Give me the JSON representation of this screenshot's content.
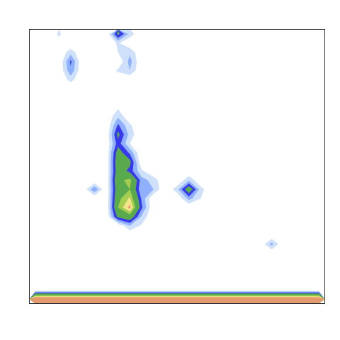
{
  "chart_data": {
    "type": "contour",
    "tick_labels": false,
    "xlim": [
      0,
      25
    ],
    "ylim": [
      0,
      30
    ],
    "levels": [
      0.5,
      1,
      1.5,
      2,
      3,
      3.5,
      4
    ],
    "colors": [
      "#cfe1fa",
      "#8fb0ff",
      "#3838ee",
      "#58aa4c",
      "#a6cc50",
      "#f2e48a",
      "#e49a6c"
    ],
    "cells": [
      [
        0,
        0,
        0.6,
        0,
        0,
        0,
        0,
        2.2,
        0.8,
        0,
        0,
        0,
        0,
        0,
        0,
        0,
        0,
        0,
        0,
        0,
        0,
        0,
        0,
        0,
        0
      ],
      [
        0,
        0,
        0.3,
        0,
        0,
        0,
        0,
        0.6,
        0,
        0,
        0,
        0,
        0,
        0,
        0,
        0,
        0,
        0,
        0,
        0,
        0,
        0,
        0,
        0,
        0
      ],
      [
        0,
        0,
        0,
        0.8,
        0,
        0,
        0,
        0.5,
        0.9,
        0,
        0,
        0,
        0,
        0,
        0,
        0,
        0,
        0,
        0,
        0,
        0,
        0,
        0,
        0,
        0
      ],
      [
        0,
        0,
        0,
        1.6,
        0,
        0,
        0,
        0,
        1.2,
        0,
        0,
        0,
        0,
        0,
        0,
        0,
        0,
        0,
        0,
        0,
        0,
        0,
        0,
        0,
        0
      ],
      [
        0,
        0,
        0,
        1.4,
        0,
        0,
        0,
        0.6,
        1.0,
        0,
        0,
        0,
        0,
        0,
        0,
        0,
        0,
        0,
        0,
        0,
        0,
        0,
        0,
        0,
        0
      ],
      [
        0,
        0,
        0,
        0.7,
        0,
        0,
        0,
        0,
        0,
        0,
        0,
        0,
        0,
        0,
        0,
        0,
        0,
        0,
        0,
        0,
        0,
        0,
        0,
        0,
        0
      ],
      [
        0,
        0,
        0,
        0,
        0,
        0,
        0,
        0,
        0.3,
        0,
        0,
        0,
        0,
        0,
        0,
        0,
        0,
        0,
        0,
        0,
        0,
        0,
        0,
        0,
        0
      ],
      [
        0,
        0,
        0,
        0,
        0,
        0,
        0,
        0,
        0,
        0,
        0,
        0,
        0,
        0,
        0,
        0,
        0,
        0,
        0,
        0,
        0,
        0,
        0,
        0,
        0
      ],
      [
        0,
        0,
        0,
        0,
        0,
        0,
        0,
        0.4,
        0,
        0,
        0,
        0,
        0,
        0,
        0,
        0,
        0,
        0,
        0,
        0,
        0,
        0,
        0,
        0,
        0
      ],
      [
        0,
        0,
        0,
        0,
        0,
        0,
        0,
        0.9,
        0,
        0,
        0,
        0,
        0,
        0,
        0,
        0,
        0,
        0,
        0,
        0,
        0,
        0,
        0,
        0,
        0
      ],
      [
        0,
        0,
        0,
        0,
        0,
        0,
        0,
        1.6,
        0.6,
        0,
        0,
        0,
        0,
        0,
        0,
        0,
        0,
        0,
        0,
        0,
        0,
        0,
        0,
        0,
        0
      ],
      [
        0,
        0,
        0,
        0,
        0,
        0,
        0,
        2.2,
        0.8,
        0,
        0,
        0,
        0,
        0,
        0,
        0,
        0,
        0,
        0,
        0,
        0,
        0,
        0,
        0,
        0
      ],
      [
        0,
        0,
        0,
        0,
        0,
        0,
        0,
        1.8,
        0.5,
        0,
        0,
        0,
        0,
        0,
        0,
        0,
        0,
        0,
        0,
        0,
        0,
        0,
        0,
        0,
        0
      ],
      [
        0,
        0,
        0,
        0,
        0,
        0,
        0,
        2.4,
        1.4,
        0,
        0,
        0,
        0,
        0,
        0,
        0,
        0,
        0,
        0,
        0,
        0,
        0,
        0,
        0,
        0
      ],
      [
        0,
        0,
        0,
        0,
        0,
        0,
        0,
        2.6,
        2.2,
        0,
        0,
        0,
        0,
        0,
        0,
        0,
        0,
        0,
        0,
        0,
        0,
        0,
        0,
        0,
        0
      ],
      [
        0,
        0,
        0,
        0,
        0,
        0,
        0,
        2.5,
        1.8,
        0.6,
        0,
        0,
        0,
        0,
        0,
        0,
        0,
        0,
        0,
        0,
        0,
        0,
        0,
        0,
        0
      ],
      [
        0,
        0,
        0,
        0,
        0,
        0,
        0,
        2.8,
        3.2,
        1.2,
        0.8,
        0,
        0,
        0.9,
        0,
        0,
        0,
        0,
        0,
        0,
        0,
        0,
        0,
        0,
        0
      ],
      [
        0,
        0,
        0,
        0,
        0,
        1.5,
        0,
        2.6,
        3.0,
        1.0,
        1.0,
        0,
        0.8,
        2.6,
        0.7,
        0,
        0,
        0,
        0,
        0,
        0,
        0,
        0,
        0,
        0
      ],
      [
        0,
        0,
        0,
        0,
        0,
        0,
        0,
        2.8,
        3.6,
        1.4,
        0,
        0,
        0,
        1.2,
        0.5,
        0,
        0,
        0,
        0,
        0,
        0,
        0,
        0,
        0,
        0
      ],
      [
        0,
        0,
        0,
        0,
        0,
        0,
        0,
        3.0,
        4.2,
        1.6,
        0,
        0,
        0,
        0,
        0,
        0,
        0,
        0,
        0,
        0,
        0,
        0,
        0,
        0,
        0
      ],
      [
        0,
        0,
        0,
        0,
        0,
        0,
        0,
        2.2,
        2.6,
        0.9,
        0,
        0,
        0.4,
        0,
        0,
        0,
        0,
        0,
        0,
        0,
        0,
        0,
        0,
        0,
        0
      ],
      [
        0,
        0,
        0,
        0,
        0,
        0,
        0,
        0,
        1.0,
        0.4,
        0,
        0,
        0,
        0,
        0,
        0,
        0,
        0,
        0,
        0,
        0,
        0,
        0,
        0,
        0
      ],
      [
        0,
        0,
        0,
        0,
        0,
        0,
        0,
        0,
        0,
        0,
        0,
        0,
        0,
        0,
        0,
        0,
        0,
        0,
        0,
        0,
        0,
        0,
        0,
        0,
        0
      ],
      [
        0,
        0,
        0,
        0,
        0,
        0,
        0,
        0,
        0,
        0,
        0,
        0,
        0,
        0,
        0,
        0,
        0,
        0,
        0,
        0,
        1.2,
        0,
        0,
        0,
        0
      ],
      [
        0,
        0,
        0,
        0,
        0,
        0,
        0,
        0,
        0,
        0,
        0,
        0,
        0,
        0,
        0,
        0,
        0,
        0,
        0,
        0,
        0,
        0,
        0,
        0,
        0
      ],
      [
        0,
        0,
        0,
        0,
        0,
        0,
        0,
        0,
        0,
        0,
        0,
        0,
        0,
        0,
        0,
        0,
        0,
        0,
        0,
        0,
        0,
        0,
        0,
        0,
        0
      ],
      [
        0,
        0,
        0,
        0,
        0,
        0,
        0,
        0,
        0,
        0,
        0,
        0,
        0,
        0,
        0,
        0,
        0,
        0,
        0,
        0,
        0,
        0,
        0,
        0,
        0
      ],
      [
        0,
        0,
        0,
        0,
        0,
        0,
        0,
        0,
        0,
        0,
        0,
        0,
        0,
        0,
        0,
        0,
        0,
        0,
        0,
        0,
        0,
        0,
        0,
        0,
        0
      ],
      [
        0,
        0,
        0,
        0,
        0,
        0,
        0,
        0,
        0,
        0,
        0,
        0,
        0,
        0,
        0,
        0,
        0,
        0,
        0,
        0,
        0,
        0,
        0,
        0,
        0
      ],
      [
        5,
        5,
        5,
        5,
        5,
        5,
        5,
        5,
        5,
        5,
        5,
        5,
        5,
        5,
        5,
        5,
        5,
        5,
        5,
        5,
        5,
        5,
        5,
        5,
        5
      ]
    ]
  }
}
